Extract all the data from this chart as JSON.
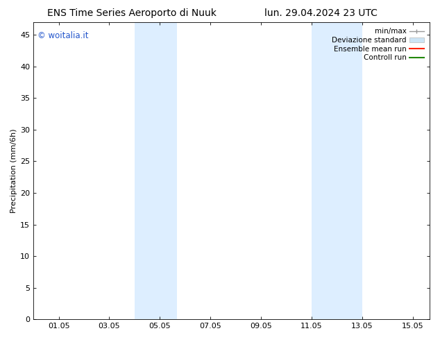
{
  "title_left": "ENS Time Series Aeroporto di Nuuk",
  "title_right": "lun. 29.04.2024 23 UTC",
  "ylabel": "Precipitation (mm/6h)",
  "watermark": "© woitalia.it",
  "watermark_color": "#2255cc",
  "ylim": [
    0,
    47
  ],
  "yticks": [
    0,
    5,
    10,
    15,
    20,
    25,
    30,
    35,
    40,
    45
  ],
  "xtick_labels": [
    "01.05",
    "03.05",
    "05.05",
    "07.05",
    "09.05",
    "11.05",
    "13.05",
    "15.05"
  ],
  "xtick_positions": [
    1.0,
    3.0,
    5.0,
    7.0,
    9.0,
    11.0,
    13.0,
    15.0
  ],
  "xlim": [
    0.0,
    15.67
  ],
  "shaded_bands": [
    {
      "xmin": 4.0,
      "xmax": 5.67
    },
    {
      "xmin": 11.0,
      "xmax": 13.0
    }
  ],
  "shade_color": "#ddeeff",
  "background_color": "#ffffff",
  "title_fontsize": 10,
  "axis_label_fontsize": 8,
  "tick_fontsize": 8,
  "legend_fontsize": 7.5,
  "watermark_fontsize": 8.5
}
